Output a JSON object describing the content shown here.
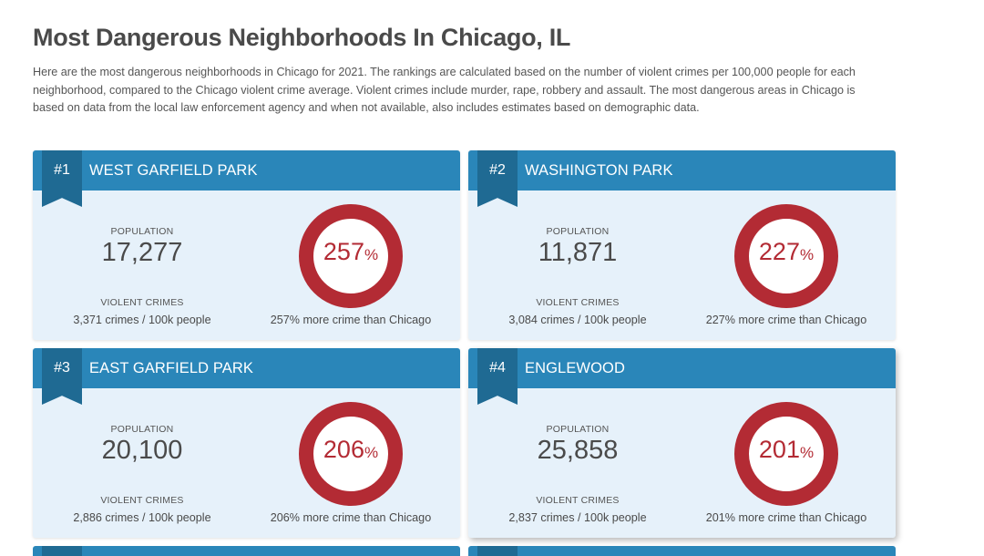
{
  "page": {
    "title": "Most Dangerous Neighborhoods In Chicago, IL",
    "intro": "Here are the most dangerous neighborhoods in Chicago for 2021. The rankings are calculated based on the number of violent crimes per 100,000 people for each neighborhood, compared to the Chicago violent crime average. Violent crimes include murder, rape, robbery and assault. The most dangerous areas in Chicago is based on data from the local law enforcement agency and when not available, also includes estimates based on demographic data."
  },
  "labels": {
    "population": "POPULATION",
    "violent_crimes": "VIOLENT CRIMES",
    "percent_sign": "%"
  },
  "colors": {
    "header": "#2a86b9",
    "ribbon": "#1f6a93",
    "card_bg": "#e6f1fa",
    "ring": "#b32b34"
  },
  "icons": {
    "rank_marker": "bookmark-ribbon-icon"
  },
  "cards": [
    {
      "rank": "#1",
      "name": "WEST GARFIELD PARK",
      "population": "17,277",
      "crimes": "3,371 crimes / 100k people",
      "percent": "257",
      "comparison": "257% more crime than Chicago"
    },
    {
      "rank": "#2",
      "name": "WASHINGTON PARK",
      "population": "11,871",
      "crimes": "3,084 crimes / 100k people",
      "percent": "227",
      "comparison": "227% more crime than Chicago"
    },
    {
      "rank": "#3",
      "name": "EAST GARFIELD PARK",
      "population": "20,100",
      "crimes": "2,886 crimes / 100k people",
      "percent": "206",
      "comparison": "206% more crime than Chicago"
    },
    {
      "rank": "#4",
      "name": "ENGLEWOOD",
      "population": "25,858",
      "crimes": "2,837 crimes / 100k people",
      "percent": "201",
      "comparison": "201% more crime than Chicago"
    }
  ]
}
